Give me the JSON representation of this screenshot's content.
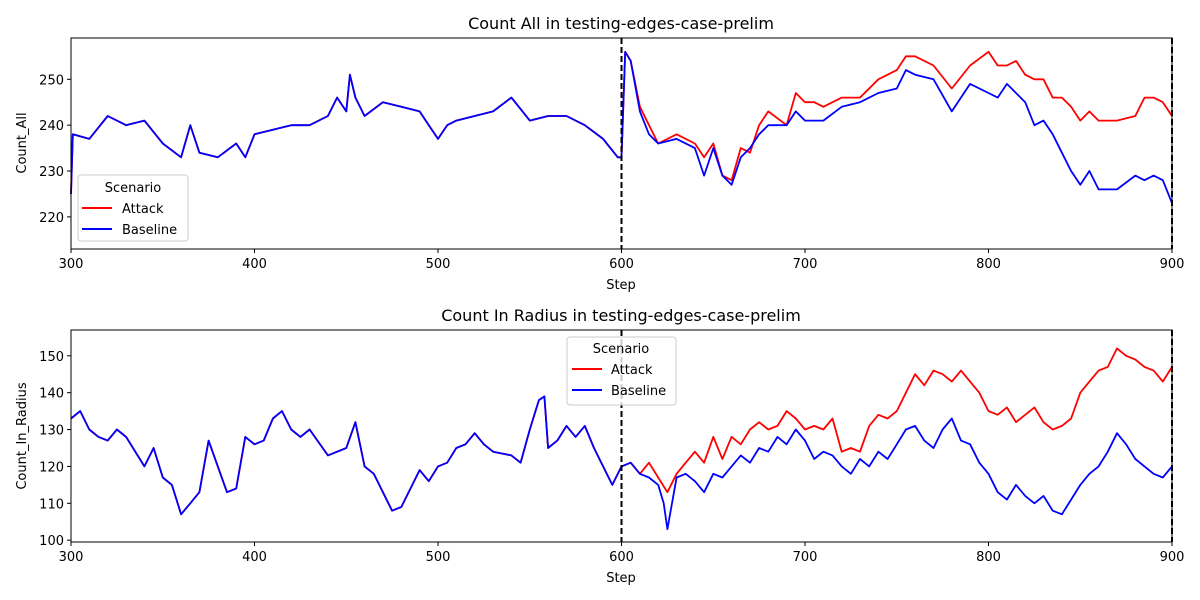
{
  "chart_data": [
    {
      "type": "line",
      "title": "Count All in testing-edges-case-prelim",
      "xlabel": "Step",
      "ylabel": "Count_All",
      "xlim": [
        300,
        900
      ],
      "ylim": [
        213,
        259
      ],
      "xticks": [
        300,
        400,
        500,
        600,
        700,
        800,
        900
      ],
      "yticks": [
        220,
        230,
        240,
        250
      ],
      "legend": {
        "title": "Scenario",
        "placement": "lower-left"
      },
      "vlines": [
        600,
        900
      ],
      "series": [
        {
          "name": "Attack",
          "color": "#ff0000",
          "x": [
            300,
            301,
            310,
            320,
            330,
            340,
            350,
            360,
            365,
            370,
            380,
            390,
            395,
            400,
            410,
            420,
            430,
            440,
            445,
            450,
            452,
            455,
            460,
            470,
            480,
            490,
            495,
            500,
            505,
            510,
            520,
            530,
            540,
            550,
            560,
            570,
            580,
            590,
            598,
            600,
            602,
            605,
            610,
            615,
            620,
            630,
            640,
            645,
            650,
            655,
            660,
            665,
            670,
            675,
            680,
            690,
            695,
            700,
            705,
            710,
            720,
            730,
            740,
            750,
            755,
            760,
            770,
            780,
            790,
            800,
            805,
            810,
            815,
            820,
            825,
            830,
            835,
            840,
            845,
            850,
            855,
            860,
            870,
            880,
            885,
            890,
            895,
            900
          ],
          "y": [
            225,
            238,
            237,
            242,
            240,
            241,
            236,
            233,
            240,
            234,
            233,
            236,
            233,
            238,
            239,
            240,
            240,
            242,
            246,
            243,
            251,
            246,
            242,
            245,
            244,
            243,
            240,
            237,
            240,
            241,
            242,
            243,
            246,
            241,
            242,
            242,
            240,
            237,
            233,
            233,
            256,
            254,
            244,
            240,
            236,
            238,
            236,
            233,
            236,
            229,
            228,
            235,
            234,
            240,
            243,
            240,
            247,
            245,
            245,
            244,
            246,
            246,
            250,
            252,
            255,
            255,
            253,
            248,
            253,
            256,
            253,
            253,
            254,
            251,
            250,
            250,
            246,
            246,
            244,
            241,
            243,
            241,
            241,
            242,
            246,
            246,
            245,
            242
          ]
        },
        {
          "name": "Baseline",
          "color": "#0000ff",
          "x": [
            300,
            301,
            310,
            320,
            330,
            340,
            350,
            360,
            365,
            370,
            380,
            390,
            395,
            400,
            410,
            420,
            430,
            440,
            445,
            450,
            452,
            455,
            460,
            470,
            480,
            490,
            495,
            500,
            505,
            510,
            520,
            530,
            540,
            550,
            560,
            570,
            580,
            590,
            598,
            600,
            602,
            605,
            610,
            615,
            620,
            630,
            640,
            645,
            650,
            655,
            660,
            665,
            670,
            675,
            680,
            690,
            695,
            700,
            705,
            710,
            720,
            730,
            740,
            750,
            755,
            760,
            770,
            780,
            790,
            800,
            805,
            810,
            815,
            820,
            825,
            830,
            835,
            840,
            845,
            850,
            855,
            860,
            870,
            880,
            885,
            890,
            895,
            900
          ],
          "y": [
            225,
            238,
            237,
            242,
            240,
            241,
            236,
            233,
            240,
            234,
            233,
            236,
            233,
            238,
            239,
            240,
            240,
            242,
            246,
            243,
            251,
            246,
            242,
            245,
            244,
            243,
            240,
            237,
            240,
            241,
            242,
            243,
            246,
            241,
            242,
            242,
            240,
            237,
            233,
            233,
            256,
            254,
            243,
            238,
            236,
            237,
            235,
            229,
            235,
            229,
            227,
            233,
            235,
            238,
            240,
            240,
            243,
            241,
            241,
            241,
            244,
            245,
            247,
            248,
            252,
            251,
            250,
            243,
            249,
            247,
            246,
            249,
            247,
            245,
            240,
            241,
            238,
            234,
            230,
            227,
            230,
            226,
            226,
            229,
            228,
            229,
            228,
            223
          ]
        }
      ]
    },
    {
      "type": "line",
      "title": "Count In Radius in testing-edges-case-prelim",
      "xlabel": "Step",
      "ylabel": "Count_In_Radius",
      "xlim": [
        300,
        900
      ],
      "ylim": [
        99.5,
        157
      ],
      "xticks": [
        300,
        400,
        500,
        600,
        700,
        800,
        900
      ],
      "yticks": [
        100,
        110,
        120,
        130,
        140,
        150
      ],
      "legend": {
        "title": "Scenario",
        "placement": "upper-center"
      },
      "vlines": [
        600,
        900
      ],
      "series": [
        {
          "name": "Attack",
          "color": "#ff0000",
          "x": [
            300,
            305,
            310,
            315,
            320,
            325,
            330,
            340,
            345,
            350,
            355,
            360,
            365,
            370,
            375,
            380,
            385,
            390,
            395,
            400,
            405,
            410,
            415,
            420,
            425,
            430,
            440,
            450,
            455,
            460,
            465,
            470,
            475,
            480,
            485,
            490,
            495,
            500,
            505,
            510,
            515,
            520,
            525,
            530,
            540,
            545,
            550,
            555,
            558,
            560,
            565,
            570,
            575,
            580,
            585,
            590,
            595,
            600,
            605,
            610,
            615,
            620,
            625,
            630,
            635,
            640,
            645,
            650,
            655,
            660,
            665,
            670,
            675,
            680,
            685,
            690,
            695,
            700,
            705,
            710,
            715,
            720,
            725,
            730,
            735,
            740,
            745,
            750,
            755,
            760,
            765,
            770,
            775,
            780,
            785,
            790,
            795,
            800,
            805,
            810,
            815,
            820,
            825,
            830,
            835,
            840,
            845,
            850,
            855,
            860,
            865,
            870,
            875,
            880,
            885,
            890,
            895,
            900
          ],
          "y": [
            133,
            135,
            130,
            128,
            127,
            130,
            128,
            120,
            125,
            117,
            115,
            107,
            110,
            113,
            127,
            120,
            113,
            114,
            128,
            126,
            127,
            133,
            135,
            130,
            128,
            130,
            123,
            125,
            132,
            120,
            118,
            113,
            108,
            109,
            114,
            119,
            116,
            120,
            121,
            125,
            126,
            129,
            126,
            124,
            123,
            121,
            130,
            138,
            139,
            125,
            127,
            131,
            128,
            131,
            125,
            120,
            115,
            120,
            121,
            118,
            121,
            117,
            113,
            118,
            121,
            124,
            121,
            128,
            122,
            128,
            126,
            130,
            132,
            130,
            131,
            135,
            133,
            130,
            131,
            130,
            133,
            124,
            125,
            124,
            131,
            134,
            133,
            135,
            140,
            145,
            142,
            146,
            145,
            143,
            146,
            143,
            140,
            135,
            134,
            136,
            132,
            134,
            136,
            132,
            130,
            131,
            133,
            140,
            143,
            146,
            147,
            152,
            150,
            149,
            147,
            146,
            143,
            147
          ]
        },
        {
          "name": "Baseline",
          "color": "#0000ff",
          "x": [
            300,
            305,
            310,
            315,
            320,
            325,
            330,
            340,
            345,
            350,
            355,
            360,
            365,
            370,
            375,
            380,
            385,
            390,
            395,
            400,
            405,
            410,
            415,
            420,
            425,
            430,
            440,
            450,
            455,
            460,
            465,
            470,
            475,
            480,
            485,
            490,
            495,
            500,
            505,
            510,
            515,
            520,
            525,
            530,
            540,
            545,
            550,
            555,
            558,
            560,
            565,
            570,
            575,
            580,
            585,
            590,
            595,
            600,
            605,
            610,
            615,
            620,
            623,
            625,
            630,
            635,
            640,
            645,
            650,
            655,
            660,
            665,
            670,
            675,
            680,
            685,
            690,
            695,
            700,
            705,
            710,
            715,
            720,
            725,
            730,
            735,
            740,
            745,
            750,
            755,
            760,
            765,
            770,
            775,
            780,
            785,
            790,
            795,
            800,
            805,
            810,
            815,
            820,
            825,
            830,
            835,
            840,
            845,
            850,
            855,
            860,
            865,
            870,
            875,
            880,
            885,
            890,
            895,
            900
          ],
          "y": [
            133,
            135,
            130,
            128,
            127,
            130,
            128,
            120,
            125,
            117,
            115,
            107,
            110,
            113,
            127,
            120,
            113,
            114,
            128,
            126,
            127,
            133,
            135,
            130,
            128,
            130,
            123,
            125,
            132,
            120,
            118,
            113,
            108,
            109,
            114,
            119,
            116,
            120,
            121,
            125,
            126,
            129,
            126,
            124,
            123,
            121,
            130,
            138,
            139,
            125,
            127,
            131,
            128,
            131,
            125,
            120,
            115,
            120,
            121,
            118,
            117,
            115,
            110,
            103,
            117,
            118,
            116,
            113,
            118,
            117,
            120,
            123,
            121,
            125,
            124,
            128,
            126,
            130,
            127,
            122,
            124,
            123,
            120,
            118,
            122,
            120,
            124,
            122,
            126,
            130,
            131,
            127,
            125,
            130,
            133,
            127,
            126,
            121,
            118,
            113,
            111,
            115,
            112,
            110,
            112,
            108,
            107,
            111,
            115,
            118,
            120,
            124,
            129,
            126,
            122,
            120,
            118,
            117,
            120
          ]
        }
      ]
    }
  ]
}
